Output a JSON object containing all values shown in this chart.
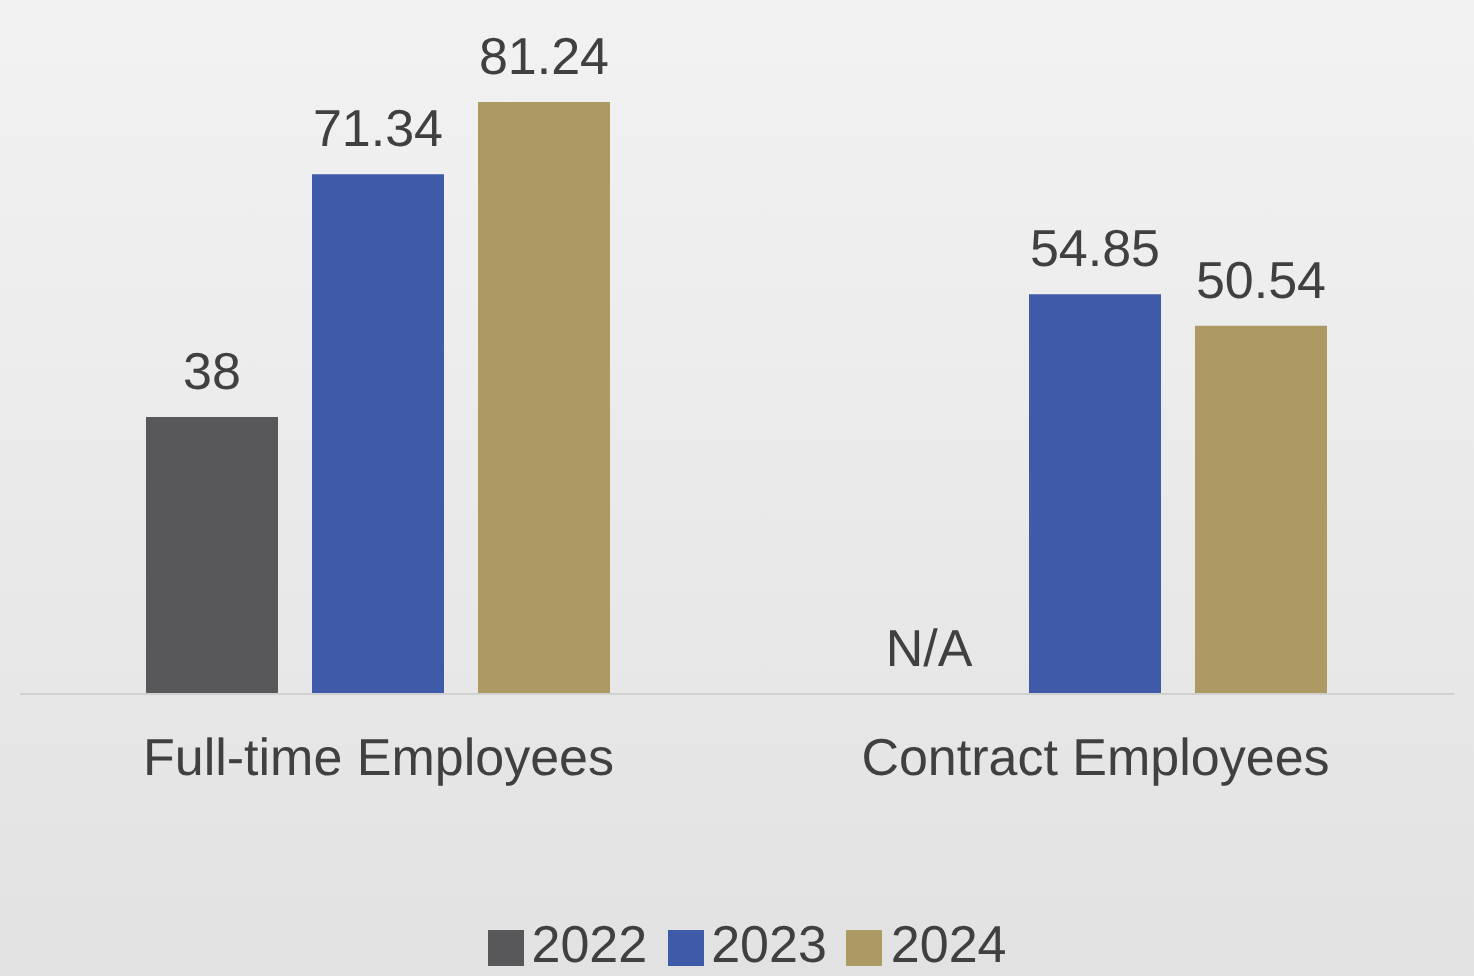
{
  "chart_data": {
    "type": "bar",
    "categories": [
      "Full-time Employees",
      "Contract Employees"
    ],
    "series": [
      {
        "name": "2022",
        "color": "#58585a",
        "values": [
          38,
          null
        ],
        "value_labels": [
          "38",
          "N/A"
        ]
      },
      {
        "name": "2023",
        "color": "#3f5aa8",
        "values": [
          71.34,
          54.85
        ],
        "value_labels": [
          "71.34",
          "54.85"
        ]
      },
      {
        "name": "2024",
        "color": "#ad9963",
        "values": [
          81.24,
          50.54
        ],
        "value_labels": [
          "81.24",
          "50.54"
        ]
      }
    ],
    "legend": "bottom",
    "grid": false
  }
}
